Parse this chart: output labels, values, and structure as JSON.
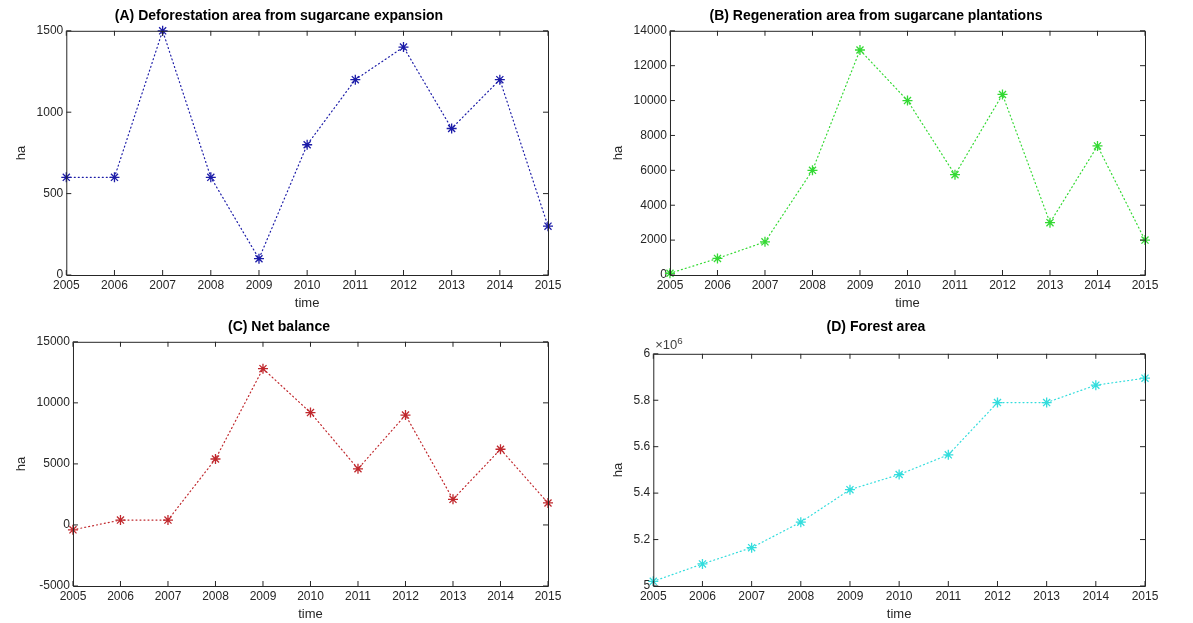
{
  "chart_data": [
    {
      "type": "line",
      "title": "(A) Deforestation area from sugarcane expansion",
      "xlabel": "time",
      "ylabel": "ha",
      "x": [
        2005,
        2006,
        2007,
        2008,
        2009,
        2010,
        2011,
        2012,
        2013,
        2014,
        2015
      ],
      "values": [
        600,
        600,
        1500,
        600,
        100,
        800,
        1200,
        1400,
        900,
        1200,
        300
      ],
      "color": "#1c1ca8",
      "xlim": [
        2005,
        2015
      ],
      "xticks": [
        2005,
        2006,
        2007,
        2008,
        2009,
        2010,
        2011,
        2012,
        2013,
        2014,
        2015
      ],
      "ylim": [
        0,
        1500
      ],
      "yticks": [
        0,
        500,
        1000,
        1500
      ],
      "grid": false,
      "marker": "cross",
      "line_style": "dotted"
    },
    {
      "type": "line",
      "title": "(B) Regeneration area from sugarcane plantations",
      "xlabel": "time",
      "ylabel": "ha",
      "x": [
        2005,
        2006,
        2007,
        2008,
        2009,
        2010,
        2011,
        2012,
        2013,
        2014,
        2015
      ],
      "values": [
        100,
        950,
        1900,
        6000,
        12900,
        10000,
        5750,
        10350,
        3000,
        7400,
        2000
      ],
      "color": "#33d933",
      "xlim": [
        2005,
        2015
      ],
      "xticks": [
        2005,
        2006,
        2007,
        2008,
        2009,
        2010,
        2011,
        2012,
        2013,
        2014,
        2015
      ],
      "ylim": [
        0,
        14000
      ],
      "yticks": [
        0,
        2000,
        4000,
        6000,
        8000,
        10000,
        12000,
        14000
      ],
      "grid": false,
      "marker": "cross",
      "line_style": "dotted"
    },
    {
      "type": "line",
      "title": "(C) Net balance",
      "xlabel": "time",
      "ylabel": "ha",
      "x": [
        2005,
        2006,
        2007,
        2008,
        2009,
        2010,
        2011,
        2012,
        2013,
        2014,
        2015
      ],
      "values": [
        -400,
        400,
        400,
        5400,
        12800,
        9200,
        4600,
        9000,
        2100,
        6200,
        1800
      ],
      "color": "#c0282d",
      "xlim": [
        2005,
        2015
      ],
      "xticks": [
        2005,
        2006,
        2007,
        2008,
        2009,
        2010,
        2011,
        2012,
        2013,
        2014,
        2015
      ],
      "ylim": [
        -5000,
        15000
      ],
      "yticks": [
        -5000,
        0,
        5000,
        10000,
        15000
      ],
      "grid": false,
      "marker": "cross",
      "line_style": "dotted"
    },
    {
      "type": "line",
      "title": "(D) Forest area",
      "xlabel": "time",
      "ylabel": "ha",
      "annotations": [
        "×10$^{6}$"
      ],
      "x": [
        2005,
        2006,
        2007,
        2008,
        2009,
        2010,
        2011,
        2012,
        2013,
        2014,
        2015
      ],
      "values": [
        5.02,
        5.095,
        5.165,
        5.275,
        5.415,
        5.48,
        5.565,
        5.79,
        5.79,
        5.865,
        5.895
      ],
      "color": "#33dddd",
      "xlim": [
        2005,
        2015
      ],
      "xticks": [
        2005,
        2006,
        2007,
        2008,
        2009,
        2010,
        2011,
        2012,
        2013,
        2014,
        2015
      ],
      "ylim": [
        5,
        6
      ],
      "yticks": [
        5,
        5.2,
        5.4,
        5.6,
        5.8,
        6
      ],
      "grid": false,
      "marker": "cross",
      "line_style": "dotted"
    }
  ]
}
